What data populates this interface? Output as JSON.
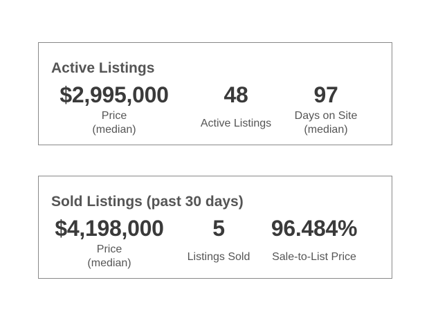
{
  "active": {
    "title": "Active Listings",
    "stats": [
      {
        "value": "$2,995,000",
        "label": "Price\n(median)"
      },
      {
        "value": "48",
        "label": "Active Listings"
      },
      {
        "value": "97",
        "label": "Days on Site\n(median)"
      }
    ]
  },
  "sold": {
    "title": "Sold Listings (past 30 days)",
    "stats": [
      {
        "value": "$4,198,000",
        "label": "Price\n(median)"
      },
      {
        "value": "5",
        "label": "Listings Sold"
      },
      {
        "value": "96.484%",
        "label": "Sale-to-List Price"
      }
    ]
  }
}
